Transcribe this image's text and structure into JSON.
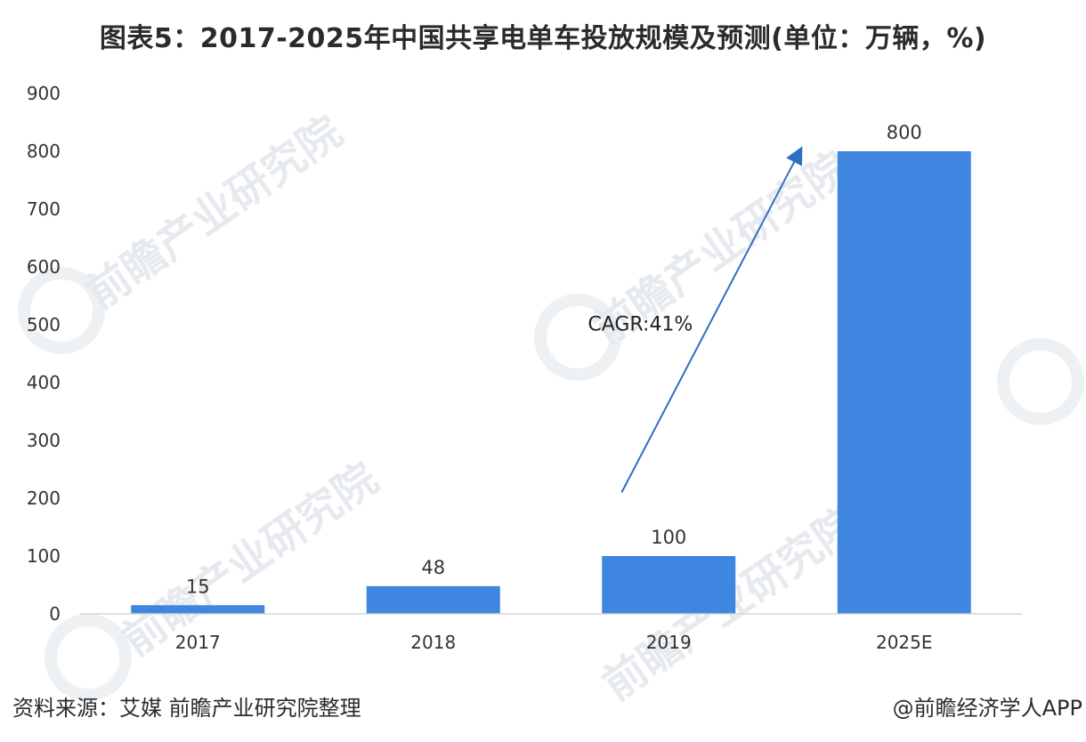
{
  "title": "图表5：2017-2025年中国共享电单车投放规模及预测(单位：万辆，%)",
  "source": "资料来源：艾媒 前瞻产业研究院整理",
  "credit": "@前瞻经济学人APP",
  "watermark": "前瞻产业研究院",
  "colors": {
    "bar": "#3f86e0",
    "arrow": "#2f6fc2",
    "axis": "#d6d6d6",
    "text": "#333333"
  },
  "chart_data": {
    "type": "bar",
    "categories": [
      "2017",
      "2018",
      "2019",
      "2025E"
    ],
    "values": [
      15,
      48,
      100,
      800
    ],
    "data_labels": [
      "15",
      "48",
      "100",
      "800"
    ],
    "ylim": [
      0,
      900
    ],
    "yticks": [
      0,
      100,
      200,
      300,
      400,
      500,
      600,
      700,
      800,
      900
    ],
    "grid": false,
    "annotation": {
      "text": "CAGR:41%",
      "from_value": 210,
      "to_value": 795
    }
  }
}
